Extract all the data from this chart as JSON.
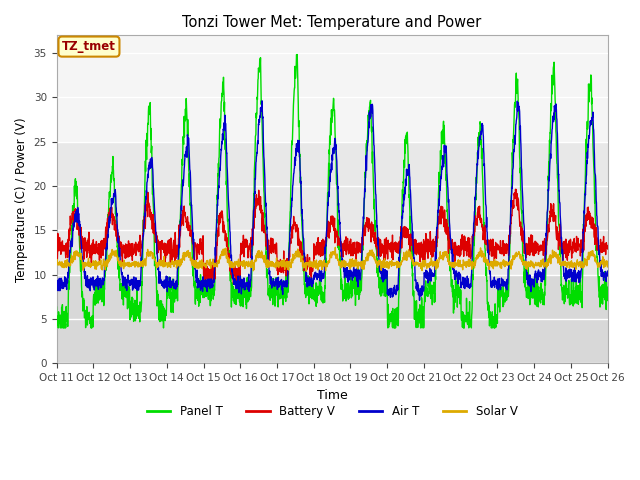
{
  "title": "Tonzi Tower Met: Temperature and Power",
  "xlabel": "Time",
  "ylabel": "Temperature (C) / Power (V)",
  "ylim": [
    0,
    37
  ],
  "yticks": [
    0,
    5,
    10,
    15,
    20,
    25,
    30,
    35
  ],
  "legend_label": "TZ_tmet",
  "colors": {
    "panel_t": "#00dd00",
    "battery_v": "#dd0000",
    "air_t": "#0000cc",
    "solar_v": "#ddaa00"
  },
  "n_days": 15,
  "seed": 7,
  "band1_lo": 10,
  "band1_hi": 25,
  "band_color1": "#e8e8e8",
  "band2_lo": 0,
  "band2_hi": 10,
  "band_color2": "#d8d8d8",
  "above_color": "#f5f5f5"
}
